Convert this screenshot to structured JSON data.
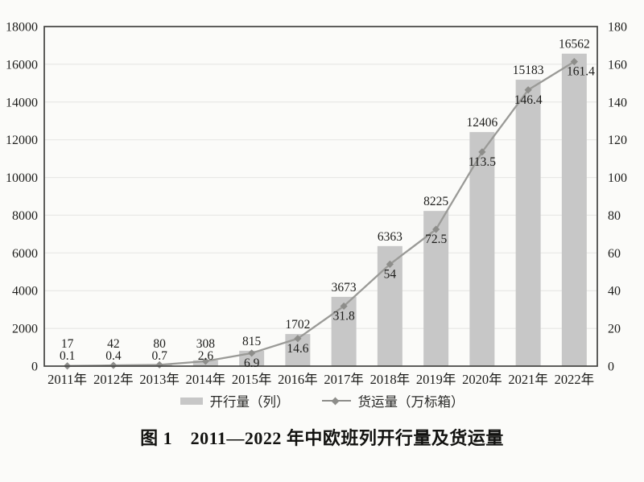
{
  "chart_data": {
    "type": "bar+line",
    "categories": [
      "2011年",
      "2012年",
      "2013年",
      "2014年",
      "2015年",
      "2016年",
      "2017年",
      "2018年",
      "2019年",
      "2020年",
      "2021年",
      "2022年"
    ],
    "series": [
      {
        "name": "开行量（列）",
        "type": "bar",
        "axis": "left",
        "values": [
          17,
          42,
          80,
          308,
          815,
          1702,
          3673,
          6363,
          8225,
          12406,
          15183,
          16562
        ],
        "labels": [
          "17",
          "42",
          "80",
          "308",
          "815",
          "1702",
          "3673",
          "6363",
          "8225",
          "12406",
          "15183",
          "16562"
        ],
        "color": "#c7c7c7"
      },
      {
        "name": "货运量（万标箱）",
        "type": "line",
        "axis": "right",
        "values": [
          0.1,
          0.4,
          0.7,
          2.6,
          6.9,
          14.6,
          31.8,
          54,
          72.5,
          113.5,
          146.4,
          161.4
        ],
        "labels": [
          "0.1",
          "0.4",
          "0.7",
          "2.6",
          "6.9",
          "14.6",
          "31.8",
          "54",
          "72.5",
          "113.5",
          "146.4",
          "161.4"
        ],
        "color": "#9a9a97",
        "marker": "diamond",
        "marker_color": "#8d8d8a"
      }
    ],
    "left_axis": {
      "min": 0,
      "max": 18000,
      "step": 2000,
      "ticks": [
        "0",
        "2000",
        "4000",
        "6000",
        "8000",
        "10000",
        "12000",
        "14000",
        "16000",
        "18000"
      ]
    },
    "right_axis": {
      "min": 0,
      "max": 180,
      "step": 20,
      "ticks": [
        "0",
        "20",
        "40",
        "60",
        "80",
        "100",
        "120",
        "140",
        "160",
        "180"
      ]
    },
    "grid": true,
    "legend_position": "bottom",
    "title": ""
  },
  "legend": {
    "items": [
      {
        "label": "开行量（列）",
        "swatch": "bar"
      },
      {
        "label": "货运量（万标箱）",
        "swatch": "line-diamond"
      }
    ]
  },
  "caption": "图 1　2011—2022 年中欧班列开行量及货运量",
  "colors": {
    "background": "#fbfbf9",
    "bar": "#c7c7c7",
    "line": "#9a9a97",
    "marker": "#8d8d8a",
    "frame": "#434341",
    "grid": "#e8e8e6",
    "text": "#1c1c1a"
  }
}
